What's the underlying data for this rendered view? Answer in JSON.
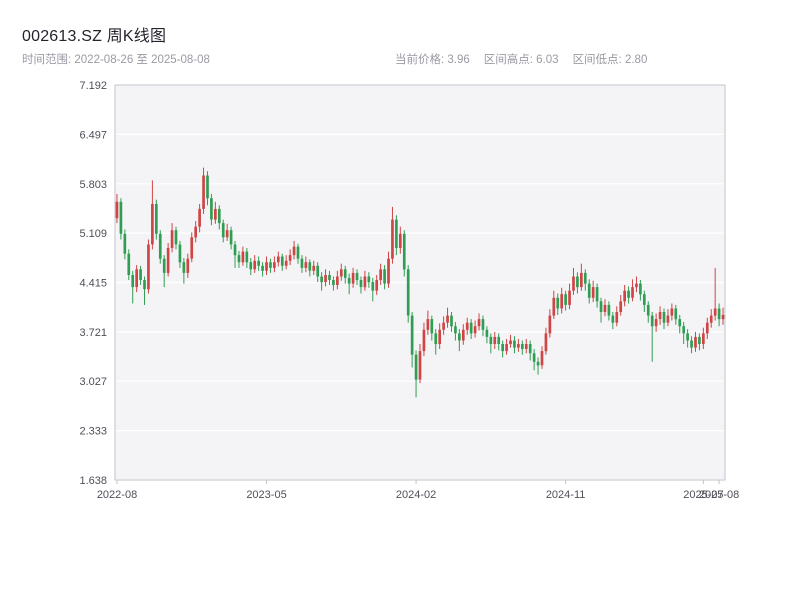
{
  "header": {
    "title": "002613.SZ 周K线图",
    "subtitle_left": "时间范围: 2022-08-26 至 2025-08-08",
    "stats": {
      "current": "当前价格: 3.96",
      "high": "区间高点: 6.03",
      "low": "区间低点: 2.80"
    }
  },
  "chart_data": {
    "type": "candlestick",
    "title": "002613.SZ 周K线图",
    "interval": "weekly",
    "symbol": "002613.SZ",
    "date_range": {
      "start": "2022-08-26",
      "end": "2025-08-08"
    },
    "current_price": 3.96,
    "range_high": 6.03,
    "range_low": 2.8,
    "ylim": [
      1.638,
      7.192
    ],
    "y_ticks": [
      1.638,
      2.333,
      3.027,
      3.721,
      4.415,
      5.109,
      5.803,
      6.497,
      7.192
    ],
    "x_ticks": [
      {
        "index": 0,
        "label": "2022-08"
      },
      {
        "index": 38,
        "label": "2023-05"
      },
      {
        "index": 76,
        "label": "2024-02"
      },
      {
        "index": 114,
        "label": "2024-11"
      },
      {
        "index": 149,
        "label": "2025-07"
      },
      {
        "index": 153,
        "label": "2025-08"
      }
    ],
    "grid": true,
    "legend": "none",
    "colors": {
      "up": "#cf4444",
      "down": "#2f9e52",
      "plot_bg": "#f4f4f7",
      "grid": "#ffffff",
      "border": "#c3c3cb"
    },
    "candles_format": [
      "open",
      "high",
      "low",
      "close"
    ],
    "candles": [
      [
        5.32,
        5.66,
        5.25,
        5.55
      ],
      [
        5.55,
        5.6,
        5.02,
        5.1
      ],
      [
        5.1,
        5.16,
        4.74,
        4.82
      ],
      [
        4.82,
        4.88,
        4.45,
        4.52
      ],
      [
        4.52,
        4.58,
        4.12,
        4.35
      ],
      [
        4.35,
        4.66,
        4.28,
        4.6
      ],
      [
        4.6,
        4.65,
        4.38,
        4.45
      ],
      [
        4.45,
        4.5,
        4.1,
        4.32
      ],
      [
        4.32,
        5.02,
        4.26,
        4.95
      ],
      [
        4.95,
        5.85,
        4.88,
        5.52
      ],
      [
        5.52,
        5.58,
        5.02,
        5.1
      ],
      [
        5.1,
        5.15,
        4.68,
        4.75
      ],
      [
        4.75,
        4.8,
        4.35,
        4.55
      ],
      [
        4.55,
        4.97,
        4.5,
        4.9
      ],
      [
        4.9,
        5.25,
        4.84,
        5.15
      ],
      [
        5.15,
        5.2,
        4.88,
        4.95
      ],
      [
        4.95,
        5.0,
        4.62,
        4.7
      ],
      [
        4.7,
        4.76,
        4.4,
        4.55
      ],
      [
        4.55,
        4.82,
        4.48,
        4.75
      ],
      [
        4.75,
        5.12,
        4.7,
        5.05
      ],
      [
        5.05,
        5.28,
        4.98,
        5.2
      ],
      [
        5.2,
        5.52,
        5.12,
        5.45
      ],
      [
        5.45,
        6.03,
        5.38,
        5.92
      ],
      [
        5.92,
        5.98,
        5.5,
        5.6
      ],
      [
        5.6,
        5.66,
        5.22,
        5.3
      ],
      [
        5.3,
        5.55,
        5.24,
        5.45
      ],
      [
        5.45,
        5.5,
        5.16,
        5.25
      ],
      [
        5.25,
        5.3,
        4.98,
        5.05
      ],
      [
        5.05,
        5.24,
        5.0,
        5.15
      ],
      [
        5.15,
        5.2,
        4.88,
        4.95
      ],
      [
        4.95,
        5.0,
        4.62,
        4.8
      ],
      [
        4.8,
        4.86,
        4.62,
        4.7
      ],
      [
        4.7,
        4.92,
        4.65,
        4.85
      ],
      [
        4.85,
        4.9,
        4.62,
        4.7
      ],
      [
        4.7,
        4.76,
        4.52,
        4.6
      ],
      [
        4.6,
        4.8,
        4.55,
        4.72
      ],
      [
        4.72,
        4.78,
        4.58,
        4.65
      ],
      [
        4.65,
        4.7,
        4.5,
        4.58
      ],
      [
        4.58,
        4.78,
        4.52,
        4.7
      ],
      [
        4.7,
        4.75,
        4.55,
        4.62
      ],
      [
        4.62,
        4.78,
        4.56,
        4.7
      ],
      [
        4.7,
        4.85,
        4.64,
        4.78
      ],
      [
        4.78,
        4.82,
        4.58,
        4.65
      ],
      [
        4.65,
        4.8,
        4.6,
        4.72
      ],
      [
        4.72,
        4.88,
        4.66,
        4.8
      ],
      [
        4.8,
        5.0,
        4.74,
        4.92
      ],
      [
        4.92,
        4.96,
        4.68,
        4.75
      ],
      [
        4.75,
        4.8,
        4.55,
        4.62
      ],
      [
        4.62,
        4.78,
        4.56,
        4.7
      ],
      [
        4.7,
        4.74,
        4.5,
        4.58
      ],
      [
        4.58,
        4.72,
        4.52,
        4.65
      ],
      [
        4.65,
        4.7,
        4.42,
        4.5
      ],
      [
        4.5,
        4.56,
        4.3,
        4.42
      ],
      [
        4.42,
        4.6,
        4.36,
        4.52
      ],
      [
        4.52,
        4.58,
        4.38,
        4.45
      ],
      [
        4.45,
        4.5,
        4.3,
        4.38
      ],
      [
        4.38,
        4.58,
        4.32,
        4.5
      ],
      [
        4.5,
        4.68,
        4.44,
        4.6
      ],
      [
        4.6,
        4.65,
        4.4,
        4.48
      ],
      [
        4.48,
        4.54,
        4.25,
        4.4
      ],
      [
        4.4,
        4.62,
        4.34,
        4.55
      ],
      [
        4.55,
        4.6,
        4.38,
        4.45
      ],
      [
        4.45,
        4.5,
        4.26,
        4.35
      ],
      [
        4.35,
        4.58,
        4.3,
        4.5
      ],
      [
        4.5,
        4.56,
        4.34,
        4.42
      ],
      [
        4.42,
        4.48,
        4.15,
        4.3
      ],
      [
        4.3,
        4.52,
        4.24,
        4.45
      ],
      [
        4.45,
        4.68,
        4.38,
        4.6
      ],
      [
        4.6,
        4.66,
        4.32,
        4.4
      ],
      [
        4.4,
        4.85,
        4.34,
        4.75
      ],
      [
        4.75,
        5.48,
        4.68,
        5.3
      ],
      [
        5.3,
        5.36,
        4.8,
        4.9
      ],
      [
        4.9,
        5.2,
        4.82,
        5.1
      ],
      [
        5.1,
        5.15,
        4.5,
        4.6
      ],
      [
        4.6,
        4.66,
        3.85,
        3.95
      ],
      [
        3.95,
        4.0,
        3.22,
        3.4
      ],
      [
        3.4,
        3.46,
        2.8,
        3.05
      ],
      [
        3.05,
        3.55,
        3.0,
        3.45
      ],
      [
        3.45,
        3.85,
        3.38,
        3.75
      ],
      [
        3.75,
        4.02,
        3.68,
        3.9
      ],
      [
        3.9,
        3.95,
        3.6,
        3.7
      ],
      [
        3.7,
        3.76,
        3.4,
        3.55
      ],
      [
        3.55,
        3.84,
        3.48,
        3.75
      ],
      [
        3.75,
        3.94,
        3.68,
        3.85
      ],
      [
        3.85,
        4.06,
        3.78,
        3.95
      ],
      [
        3.95,
        4.0,
        3.72,
        3.8
      ],
      [
        3.8,
        3.86,
        3.6,
        3.7
      ],
      [
        3.7,
        3.76,
        3.45,
        3.6
      ],
      [
        3.6,
        3.83,
        3.54,
        3.75
      ],
      [
        3.75,
        3.92,
        3.68,
        3.85
      ],
      [
        3.85,
        3.9,
        3.62,
        3.7
      ],
      [
        3.7,
        3.88,
        3.64,
        3.8
      ],
      [
        3.8,
        3.98,
        3.74,
        3.9
      ],
      [
        3.9,
        3.95,
        3.66,
        3.75
      ],
      [
        3.75,
        3.8,
        3.56,
        3.65
      ],
      [
        3.65,
        3.7,
        3.42,
        3.55
      ],
      [
        3.55,
        3.72,
        3.48,
        3.65
      ],
      [
        3.65,
        3.7,
        3.46,
        3.55
      ],
      [
        3.55,
        3.6,
        3.36,
        3.45
      ],
      [
        3.45,
        3.62,
        3.4,
        3.55
      ],
      [
        3.55,
        3.68,
        3.5,
        3.6
      ],
      [
        3.6,
        3.66,
        3.42,
        3.5
      ],
      [
        3.5,
        3.62,
        3.44,
        3.55
      ],
      [
        3.55,
        3.6,
        3.4,
        3.48
      ],
      [
        3.48,
        3.62,
        3.42,
        3.55
      ],
      [
        3.55,
        3.6,
        3.32,
        3.42
      ],
      [
        3.42,
        3.48,
        3.18,
        3.3
      ],
      [
        3.3,
        3.36,
        3.12,
        3.25
      ],
      [
        3.25,
        3.52,
        3.2,
        3.45
      ],
      [
        3.45,
        3.78,
        3.4,
        3.7
      ],
      [
        3.7,
        4.04,
        3.64,
        3.95
      ],
      [
        3.95,
        4.3,
        3.9,
        4.2
      ],
      [
        4.2,
        4.26,
        3.96,
        4.05
      ],
      [
        4.05,
        4.34,
        3.98,
        4.25
      ],
      [
        4.25,
        4.3,
        4.02,
        4.1
      ],
      [
        4.1,
        4.4,
        4.04,
        4.3
      ],
      [
        4.3,
        4.62,
        4.24,
        4.5
      ],
      [
        4.5,
        4.56,
        4.26,
        4.35
      ],
      [
        4.35,
        4.68,
        4.3,
        4.55
      ],
      [
        4.55,
        4.6,
        4.3,
        4.4
      ],
      [
        4.4,
        4.46,
        4.12,
        4.2
      ],
      [
        4.2,
        4.44,
        4.14,
        4.35
      ],
      [
        4.35,
        4.4,
        4.06,
        4.15
      ],
      [
        4.15,
        4.2,
        3.85,
        4.0
      ],
      [
        4.0,
        4.18,
        3.94,
        4.1
      ],
      [
        4.1,
        4.15,
        3.88,
        3.95
      ],
      [
        3.95,
        4.0,
        3.76,
        3.85
      ],
      [
        3.85,
        4.08,
        3.8,
        4.0
      ],
      [
        4.0,
        4.24,
        3.95,
        4.15
      ],
      [
        4.15,
        4.38,
        4.08,
        4.3
      ],
      [
        4.3,
        4.36,
        4.12,
        4.2
      ],
      [
        4.2,
        4.46,
        4.15,
        4.35
      ],
      [
        4.35,
        4.5,
        4.28,
        4.4
      ],
      [
        4.4,
        4.45,
        4.16,
        4.25
      ],
      [
        4.25,
        4.3,
        4.0,
        4.1
      ],
      [
        4.1,
        4.15,
        3.85,
        3.95
      ],
      [
        3.95,
        4.0,
        3.3,
        3.8
      ],
      [
        3.8,
        3.98,
        3.72,
        3.9
      ],
      [
        3.9,
        4.08,
        3.82,
        4.0
      ],
      [
        4.0,
        4.05,
        3.76,
        3.85
      ],
      [
        3.85,
        4.04,
        3.8,
        3.95
      ],
      [
        3.95,
        4.12,
        3.88,
        4.05
      ],
      [
        4.05,
        4.1,
        3.82,
        3.9
      ],
      [
        3.9,
        3.96,
        3.7,
        3.8
      ],
      [
        3.8,
        3.86,
        3.55,
        3.7
      ],
      [
        3.7,
        3.76,
        3.5,
        3.6
      ],
      [
        3.6,
        3.66,
        3.42,
        3.5
      ],
      [
        3.5,
        3.72,
        3.44,
        3.65
      ],
      [
        3.65,
        3.7,
        3.46,
        3.55
      ],
      [
        3.55,
        3.78,
        3.48,
        3.7
      ],
      [
        3.7,
        3.92,
        3.62,
        3.85
      ],
      [
        3.85,
        4.04,
        3.78,
        3.95
      ],
      [
        3.95,
        4.62,
        3.88,
        4.05
      ],
      [
        4.05,
        4.12,
        3.8,
        3.9
      ],
      [
        3.9,
        4.06,
        3.82,
        3.96
      ]
    ]
  }
}
